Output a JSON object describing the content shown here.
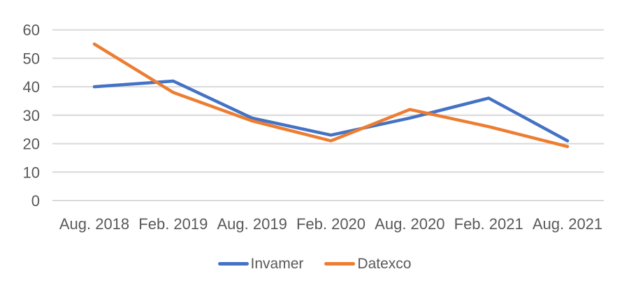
{
  "chart_data": {
    "type": "line",
    "title": "",
    "xlabel": "",
    "ylabel": "",
    "categories": [
      "Aug. 2018",
      "Feb. 2019",
      "Aug. 2019",
      "Feb. 2020",
      "Aug. 2020",
      "Feb. 2021",
      "Aug. 2021"
    ],
    "series": [
      {
        "name": "Invamer",
        "color": "#4472C4",
        "values": [
          40,
          42,
          29,
          23,
          29,
          36,
          21
        ]
      },
      {
        "name": "Datexco",
        "color": "#ED7D31",
        "values": [
          55,
          38,
          28,
          21,
          32,
          26,
          19
        ]
      }
    ],
    "ylim": [
      0,
      60
    ],
    "yticks": [
      0,
      10,
      20,
      30,
      40,
      50,
      60
    ],
    "grid": true,
    "gridline_color": "#D9D9D9",
    "axis_label_color": "#595959",
    "background_color": "#FFFFFF",
    "legend_position": "bottom"
  }
}
